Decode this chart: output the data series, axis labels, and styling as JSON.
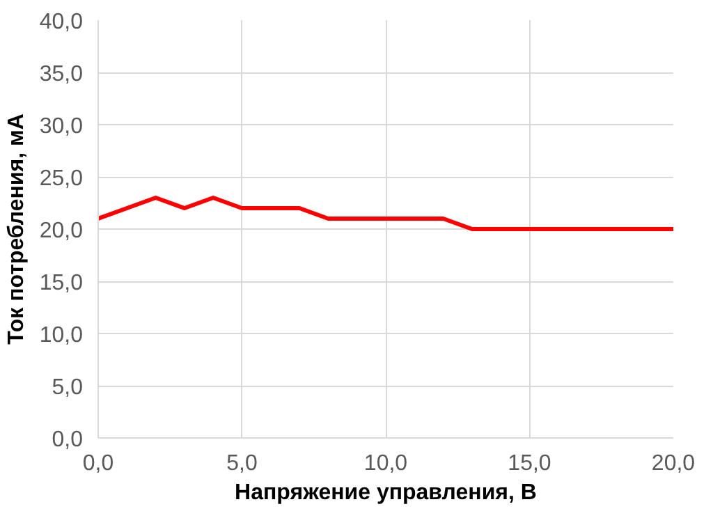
{
  "chart_data": {
    "type": "line",
    "xlabel": "Напряжение управления, В",
    "ylabel": "Ток потребления, мА",
    "x": [
      0,
      1,
      2,
      3,
      4,
      5,
      6,
      7,
      8,
      9,
      10,
      11,
      12,
      13,
      14,
      15,
      16,
      17,
      18,
      19,
      20
    ],
    "series": [
      {
        "color": "#ff0000",
        "values": [
          21,
          22,
          23,
          22,
          23,
          22,
          22,
          22,
          21,
          21,
          21,
          21,
          21,
          20,
          20,
          20,
          20,
          20,
          20,
          20,
          20
        ]
      }
    ],
    "xlim": [
      0,
      20
    ],
    "xticks": [
      {
        "value": 0,
        "label": "0,0"
      },
      {
        "value": 5,
        "label": "5,0"
      },
      {
        "value": 10,
        "label": "10,0"
      },
      {
        "value": 15,
        "label": "15,0"
      },
      {
        "value": 20,
        "label": "20,0"
      }
    ],
    "ylim": [
      0,
      40
    ],
    "yticks": [
      {
        "value": 0,
        "label": "0,0"
      },
      {
        "value": 5,
        "label": "5,0"
      },
      {
        "value": 10,
        "label": "10,0"
      },
      {
        "value": 15,
        "label": "15,0"
      },
      {
        "value": 20,
        "label": "20,0"
      },
      {
        "value": 25,
        "label": "25,0"
      },
      {
        "value": 30,
        "label": "30,0"
      },
      {
        "value": 35,
        "label": "35,0"
      },
      {
        "value": 40,
        "label": "40,0"
      }
    ],
    "grid": true,
    "marker": "none",
    "line_style": "solid"
  }
}
